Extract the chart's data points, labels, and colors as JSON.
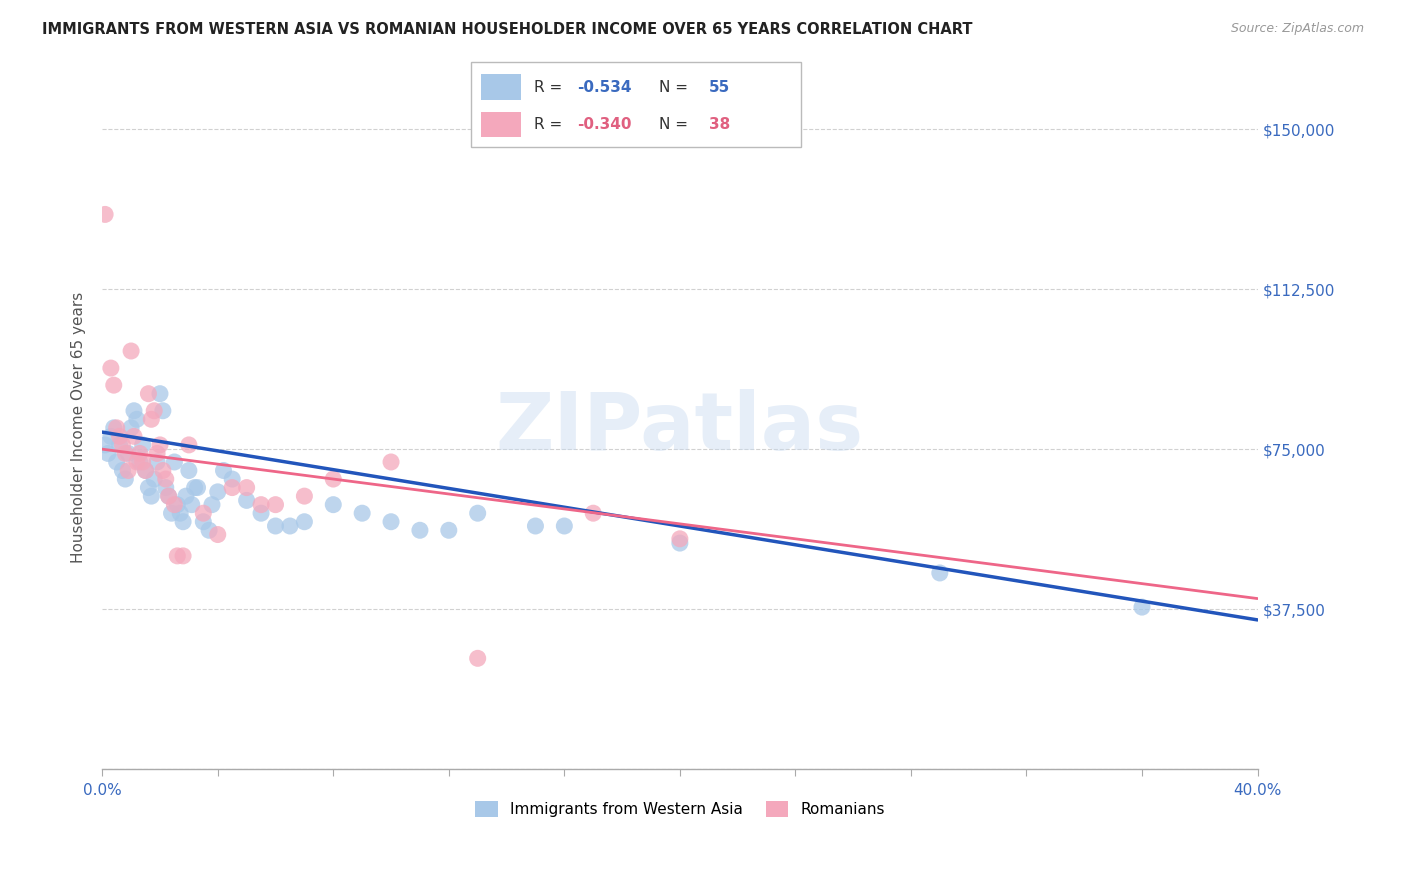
{
  "title": "IMMIGRANTS FROM WESTERN ASIA VS ROMANIAN HOUSEHOLDER INCOME OVER 65 YEARS CORRELATION CHART",
  "source": "Source: ZipAtlas.com",
  "ylabel": "Householder Income Over 65 years",
  "xlim": [
    0,
    0.4
  ],
  "ylim": [
    0,
    160000
  ],
  "yticks": [
    0,
    37500,
    75000,
    112500,
    150000
  ],
  "ytick_labels": [
    "",
    "$37,500",
    "$75,000",
    "$112,500",
    "$150,000"
  ],
  "color_blue": "#a8c8e8",
  "color_pink": "#f4a8bc",
  "trendline_blue": "#2255bb",
  "trendline_pink": "#ee6688",
  "watermark_text": "ZIPatlas",
  "legend_r1": "R = ",
  "legend_v1": "-0.534",
  "legend_n1_label": "N = ",
  "legend_n1_val": "55",
  "legend_r2": "R = ",
  "legend_v2": "-0.340",
  "legend_n2_label": "N = ",
  "legend_n2_val": "38",
  "legend_colored": "#3a6abf",
  "legend_colored2": "#e06080",
  "bottom_label1": "Immigrants from Western Asia",
  "bottom_label2": "Romanians",
  "blue_points": [
    [
      0.001,
      76000
    ],
    [
      0.002,
      74000
    ],
    [
      0.003,
      78000
    ],
    [
      0.004,
      80000
    ],
    [
      0.005,
      72000
    ],
    [
      0.006,
      76000
    ],
    [
      0.007,
      70000
    ],
    [
      0.008,
      68000
    ],
    [
      0.009,
      74000
    ],
    [
      0.01,
      80000
    ],
    [
      0.011,
      84000
    ],
    [
      0.012,
      82000
    ],
    [
      0.013,
      72000
    ],
    [
      0.014,
      76000
    ],
    [
      0.015,
      70000
    ],
    [
      0.016,
      66000
    ],
    [
      0.017,
      64000
    ],
    [
      0.018,
      68000
    ],
    [
      0.019,
      72000
    ],
    [
      0.02,
      88000
    ],
    [
      0.021,
      84000
    ],
    [
      0.022,
      66000
    ],
    [
      0.023,
      64000
    ],
    [
      0.024,
      60000
    ],
    [
      0.025,
      72000
    ],
    [
      0.026,
      62000
    ],
    [
      0.027,
      60000
    ],
    [
      0.028,
      58000
    ],
    [
      0.029,
      64000
    ],
    [
      0.03,
      70000
    ],
    [
      0.031,
      62000
    ],
    [
      0.032,
      66000
    ],
    [
      0.033,
      66000
    ],
    [
      0.035,
      58000
    ],
    [
      0.037,
      56000
    ],
    [
      0.038,
      62000
    ],
    [
      0.04,
      65000
    ],
    [
      0.042,
      70000
    ],
    [
      0.045,
      68000
    ],
    [
      0.05,
      63000
    ],
    [
      0.055,
      60000
    ],
    [
      0.06,
      57000
    ],
    [
      0.065,
      57000
    ],
    [
      0.07,
      58000
    ],
    [
      0.08,
      62000
    ],
    [
      0.09,
      60000
    ],
    [
      0.1,
      58000
    ],
    [
      0.11,
      56000
    ],
    [
      0.12,
      56000
    ],
    [
      0.13,
      60000
    ],
    [
      0.15,
      57000
    ],
    [
      0.16,
      57000
    ],
    [
      0.2,
      53000
    ],
    [
      0.29,
      46000
    ],
    [
      0.36,
      38000
    ]
  ],
  "pink_points": [
    [
      0.001,
      130000
    ],
    [
      0.003,
      94000
    ],
    [
      0.004,
      90000
    ],
    [
      0.005,
      80000
    ],
    [
      0.006,
      78000
    ],
    [
      0.007,
      76000
    ],
    [
      0.008,
      74000
    ],
    [
      0.009,
      70000
    ],
    [
      0.01,
      98000
    ],
    [
      0.011,
      78000
    ],
    [
      0.012,
      72000
    ],
    [
      0.013,
      74000
    ],
    [
      0.014,
      72000
    ],
    [
      0.015,
      70000
    ],
    [
      0.016,
      88000
    ],
    [
      0.017,
      82000
    ],
    [
      0.018,
      84000
    ],
    [
      0.019,
      74000
    ],
    [
      0.02,
      76000
    ],
    [
      0.021,
      70000
    ],
    [
      0.022,
      68000
    ],
    [
      0.023,
      64000
    ],
    [
      0.025,
      62000
    ],
    [
      0.026,
      50000
    ],
    [
      0.028,
      50000
    ],
    [
      0.03,
      76000
    ],
    [
      0.035,
      60000
    ],
    [
      0.04,
      55000
    ],
    [
      0.045,
      66000
    ],
    [
      0.05,
      66000
    ],
    [
      0.055,
      62000
    ],
    [
      0.06,
      62000
    ],
    [
      0.07,
      64000
    ],
    [
      0.08,
      68000
    ],
    [
      0.1,
      72000
    ],
    [
      0.13,
      26000
    ],
    [
      0.17,
      60000
    ],
    [
      0.2,
      54000
    ]
  ],
  "blue_trend_x0": 0.0,
  "blue_trend_y0": 79000,
  "blue_trend_x1": 0.4,
  "blue_trend_y1": 35000,
  "pink_trend_x0": 0.0,
  "pink_trend_y0": 75000,
  "pink_trend_x1": 0.4,
  "pink_trend_y1": 40000
}
